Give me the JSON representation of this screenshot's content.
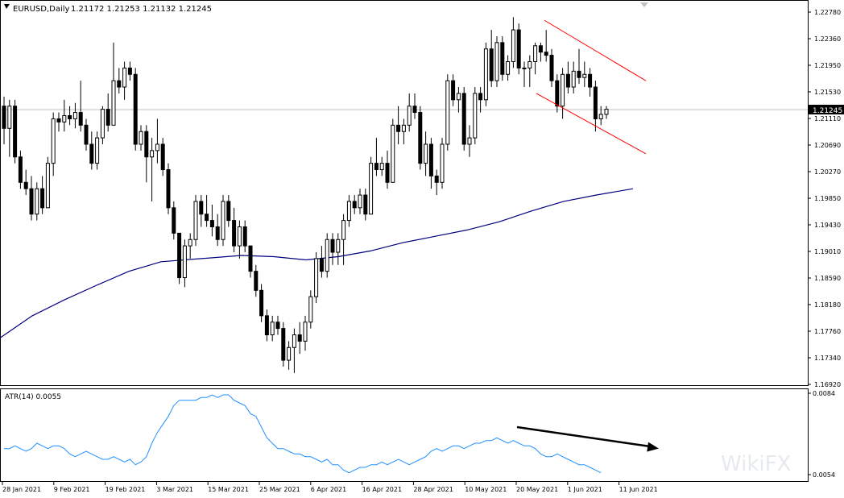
{
  "main_chart": {
    "title": "EURUSD,Daily",
    "ohlc": "1.21172 1.21253 1.21132 1.21245",
    "price_axis": [
      "1.22780",
      "1.22360",
      "1.21950",
      "1.21530",
      "1.21110",
      "1.20690",
      "1.20270",
      "1.19850",
      "1.19430",
      "1.19010",
      "1.18590",
      "1.18180",
      "1.17760",
      "1.17340",
      "1.16920"
    ],
    "current_price": "1.21245"
  },
  "indicator": {
    "title": "ATR(14) 0.0055",
    "axis": [
      "0.0084",
      "0.0054"
    ]
  },
  "time_axis": [
    "28 Jan 2021",
    "9 Feb 2021",
    "19 Feb 2021",
    "3 Mar 2021",
    "15 Mar 2021",
    "25 Mar 2021",
    "6 Apr 2021",
    "16 Apr 2021",
    "28 Apr 2021",
    "10 May 2021",
    "20 May 2021",
    "1 Jun 2021",
    "11 Jun 2021"
  ],
  "watermark": "WikiFX",
  "colors": {
    "moving_average": "#000080",
    "atr_line": "#1e90ff",
    "channel": "#ff0000",
    "price_line": "#c0c0c0"
  },
  "chart_data": [
    {
      "type": "candlestick",
      "title": "EURUSD,Daily",
      "ylim": [
        1.1692,
        1.2278
      ],
      "candles": [
        [
          1.213,
          1.2145,
          1.207,
          1.2095
        ],
        [
          1.2095,
          1.214,
          1.205,
          1.213
        ],
        [
          1.213,
          1.214,
          1.204,
          1.205
        ],
        [
          1.205,
          1.206,
          1.2,
          1.201
        ],
        [
          1.201,
          1.203,
          1.199,
          1.2
        ],
        [
          1.2,
          1.202,
          1.195,
          1.196
        ],
        [
          1.196,
          1.201,
          1.195,
          1.2
        ],
        [
          1.2,
          1.202,
          1.196,
          1.197
        ],
        [
          1.197,
          1.205,
          1.197,
          1.204
        ],
        [
          1.204,
          1.212,
          1.202,
          1.211
        ],
        [
          1.211,
          1.212,
          1.209,
          1.2105
        ],
        [
          1.2105,
          1.214,
          1.209,
          1.2115
        ],
        [
          1.2115,
          1.213,
          1.21,
          1.211
        ],
        [
          1.211,
          1.2135,
          1.2095,
          1.212
        ],
        [
          1.212,
          1.217,
          1.209,
          1.21
        ],
        [
          1.21,
          1.211,
          1.206,
          1.207
        ],
        [
          1.207,
          1.209,
          1.203,
          1.204
        ],
        [
          1.204,
          1.209,
          1.203,
          1.208
        ],
        [
          1.208,
          1.213,
          1.207,
          1.2125
        ],
        [
          1.2125,
          1.215,
          1.209,
          1.21
        ],
        [
          1.21,
          1.223,
          1.21,
          1.217
        ],
        [
          1.217,
          1.219,
          1.215,
          1.216
        ],
        [
          1.216,
          1.22,
          1.214,
          1.219
        ],
        [
          1.219,
          1.22,
          1.217,
          1.218
        ],
        [
          1.218,
          1.219,
          1.206,
          1.207
        ],
        [
          1.207,
          1.21,
          1.206,
          1.209
        ],
        [
          1.209,
          1.21,
          1.201,
          1.205
        ],
        [
          1.205,
          1.208,
          1.198,
          1.206
        ],
        [
          1.206,
          1.211,
          1.204,
          1.207
        ],
        [
          1.207,
          1.208,
          1.202,
          1.203
        ],
        [
          1.203,
          1.204,
          1.196,
          1.197
        ],
        [
          1.197,
          1.198,
          1.192,
          1.193
        ],
        [
          1.193,
          1.193,
          1.185,
          1.186
        ],
        [
          1.186,
          1.192,
          1.1845,
          1.191
        ],
        [
          1.191,
          1.193,
          1.189,
          1.192
        ],
        [
          1.192,
          1.199,
          1.191,
          1.198
        ],
        [
          1.198,
          1.199,
          1.194,
          1.196
        ],
        [
          1.196,
          1.199,
          1.194,
          1.195
        ],
        [
          1.195,
          1.1975,
          1.1925,
          1.194
        ],
        [
          1.194,
          1.196,
          1.191,
          1.192
        ],
        [
          1.192,
          1.199,
          1.191,
          1.198
        ],
        [
          1.198,
          1.199,
          1.194,
          1.195
        ],
        [
          1.195,
          1.197,
          1.19,
          1.191
        ],
        [
          1.191,
          1.195,
          1.189,
          1.194
        ],
        [
          1.194,
          1.195,
          1.19,
          1.191
        ],
        [
          1.191,
          1.191,
          1.186,
          1.187
        ],
        [
          1.187,
          1.188,
          1.183,
          1.184
        ],
        [
          1.184,
          1.185,
          1.179,
          1.18
        ],
        [
          1.18,
          1.181,
          1.176,
          1.177
        ],
        [
          1.177,
          1.18,
          1.176,
          1.179
        ],
        [
          1.179,
          1.18,
          1.177,
          1.178
        ],
        [
          1.178,
          1.179,
          1.172,
          1.173
        ],
        [
          1.173,
          1.176,
          1.1715,
          1.175
        ],
        [
          1.175,
          1.178,
          1.171,
          1.177
        ],
        [
          1.177,
          1.179,
          1.174,
          1.176
        ],
        [
          1.176,
          1.18,
          1.1745,
          1.179
        ],
        [
          1.179,
          1.184,
          1.178,
          1.183
        ],
        [
          1.183,
          1.19,
          1.182,
          1.189
        ],
        [
          1.189,
          1.191,
          1.186,
          1.187
        ],
        [
          1.187,
          1.193,
          1.186,
          1.192
        ],
        [
          1.192,
          1.193,
          1.188,
          1.19
        ],
        [
          1.19,
          1.193,
          1.188,
          1.192
        ],
        [
          1.192,
          1.196,
          1.188,
          1.195
        ],
        [
          1.195,
          1.199,
          1.194,
          1.198
        ],
        [
          1.198,
          1.199,
          1.196,
          1.197
        ],
        [
          1.197,
          1.2,
          1.196,
          1.199
        ],
        [
          1.199,
          1.2,
          1.195,
          1.196
        ],
        [
          1.196,
          1.205,
          1.196,
          1.204
        ],
        [
          1.204,
          1.208,
          1.202,
          1.203
        ],
        [
          1.203,
          1.205,
          1.202,
          1.204
        ],
        [
          1.204,
          1.206,
          1.2,
          1.201
        ],
        [
          1.201,
          1.211,
          1.201,
          1.21
        ],
        [
          1.21,
          1.213,
          1.207,
          1.209
        ],
        [
          1.209,
          1.211,
          1.207,
          1.21
        ],
        [
          1.21,
          1.215,
          1.209,
          1.213
        ],
        [
          1.213,
          1.215,
          1.211,
          1.212
        ],
        [
          1.212,
          1.213,
          1.203,
          1.204
        ],
        [
          1.204,
          1.209,
          1.202,
          1.207
        ],
        [
          1.207,
          1.208,
          1.2,
          1.202
        ],
        [
          1.202,
          1.203,
          1.199,
          1.201
        ],
        [
          1.201,
          1.208,
          1.2,
          1.207
        ],
        [
          1.207,
          1.218,
          1.206,
          1.217
        ],
        [
          1.217,
          1.218,
          1.213,
          1.214
        ],
        [
          1.214,
          1.216,
          1.212,
          1.215
        ],
        [
          1.215,
          1.216,
          1.206,
          1.207
        ],
        [
          1.207,
          1.21,
          1.205,
          1.208
        ],
        [
          1.208,
          1.216,
          1.207,
          1.215
        ],
        [
          1.215,
          1.216,
          1.212,
          1.214
        ],
        [
          1.214,
          1.223,
          1.213,
          1.222
        ],
        [
          1.222,
          1.225,
          1.216,
          1.217
        ],
        [
          1.217,
          1.224,
          1.216,
          1.223
        ],
        [
          1.223,
          1.224,
          1.217,
          1.218
        ],
        [
          1.218,
          1.221,
          1.217,
          1.22
        ],
        [
          1.22,
          1.227,
          1.219,
          1.225
        ],
        [
          1.225,
          1.226,
          1.218,
          1.219
        ],
        [
          1.219,
          1.22,
          1.216,
          1.219
        ],
        [
          1.219,
          1.221,
          1.216,
          1.22
        ],
        [
          1.22,
          1.223,
          1.218,
          1.2225
        ],
        [
          1.2225,
          1.223,
          1.22,
          1.2215
        ],
        [
          1.2215,
          1.225,
          1.22,
          1.221
        ],
        [
          1.221,
          1.222,
          1.216,
          1.217
        ],
        [
          1.217,
          1.218,
          1.212,
          1.213
        ],
        [
          1.213,
          1.219,
          1.211,
          1.218
        ],
        [
          1.218,
          1.22,
          1.215,
          1.216
        ],
        [
          1.216,
          1.22,
          1.215,
          1.2185
        ],
        [
          1.2185,
          1.222,
          1.2165,
          1.2175
        ],
        [
          1.2175,
          1.22,
          1.216,
          1.218
        ],
        [
          1.218,
          1.219,
          1.2145,
          1.216
        ],
        [
          1.216,
          1.217,
          1.209,
          1.211
        ],
        [
          1.211,
          1.213,
          1.21,
          1.2117
        ],
        [
          1.2117,
          1.213,
          1.211,
          1.2125
        ]
      ],
      "moving_average": [
        [
          0,
          1.1765
        ],
        [
          40,
          1.18
        ],
        [
          80,
          1.1825
        ],
        [
          120,
          1.1848
        ],
        [
          160,
          1.187
        ],
        [
          200,
          1.1885
        ],
        [
          250,
          1.189
        ],
        [
          300,
          1.1895
        ],
        [
          340,
          1.1893
        ],
        [
          380,
          1.1888
        ],
        [
          420,
          1.1893
        ],
        [
          460,
          1.1902
        ],
        [
          500,
          1.1915
        ],
        [
          540,
          1.1925
        ],
        [
          580,
          1.1935
        ],
        [
          620,
          1.1948
        ],
        [
          660,
          1.1965
        ],
        [
          700,
          1.198
        ],
        [
          740,
          1.199
        ],
        [
          786,
          1.2
        ]
      ],
      "channel_lines": [
        {
          "from": [
            676,
            1.2265
          ],
          "to": [
            802,
            1.217
          ]
        },
        {
          "from": [
            666,
            1.215
          ],
          "to": [
            802,
            1.2055
          ]
        }
      ]
    },
    {
      "type": "line",
      "title": "ATR(14) 0.0055",
      "ylim": [
        0.0054,
        0.0084
      ],
      "values": [
        0.0064,
        0.0064,
        0.0065,
        0.0064,
        0.0063,
        0.0064,
        0.0066,
        0.0065,
        0.0064,
        0.0065,
        0.0065,
        0.0064,
        0.0062,
        0.0061,
        0.0062,
        0.0063,
        0.0062,
        0.0061,
        0.006,
        0.006,
        0.0061,
        0.006,
        0.0059,
        0.006,
        0.0058,
        0.0059,
        0.0061,
        0.0066,
        0.007,
        0.0073,
        0.0076,
        0.008,
        0.0082,
        0.0082,
        0.0082,
        0.0082,
        0.0083,
        0.0083,
        0.0084,
        0.0083,
        0.0084,
        0.0084,
        0.0082,
        0.0081,
        0.008,
        0.0077,
        0.0076,
        0.0072,
        0.0068,
        0.0066,
        0.0064,
        0.0064,
        0.0063,
        0.0062,
        0.0062,
        0.0061,
        0.0061,
        0.006,
        0.0059,
        0.006,
        0.0058,
        0.0058,
        0.0056,
        0.0055,
        0.0056,
        0.0057,
        0.0057,
        0.0058,
        0.0058,
        0.0059,
        0.0058,
        0.0059,
        0.006,
        0.0059,
        0.0058,
        0.0059,
        0.006,
        0.0061,
        0.0063,
        0.0064,
        0.0063,
        0.0064,
        0.0065,
        0.0065,
        0.0064,
        0.0065,
        0.0066,
        0.0066,
        0.0067,
        0.0067,
        0.0068,
        0.0067,
        0.0066,
        0.0067,
        0.0066,
        0.0065,
        0.0065,
        0.0064,
        0.0062,
        0.0061,
        0.0061,
        0.0062,
        0.0061,
        0.006,
        0.0059,
        0.0058,
        0.0058,
        0.0057,
        0.0056,
        0.0055
      ],
      "arrow": {
        "from": [
          642,
          0.0072
        ],
        "to": [
          818,
          0.0064
        ]
      }
    }
  ]
}
